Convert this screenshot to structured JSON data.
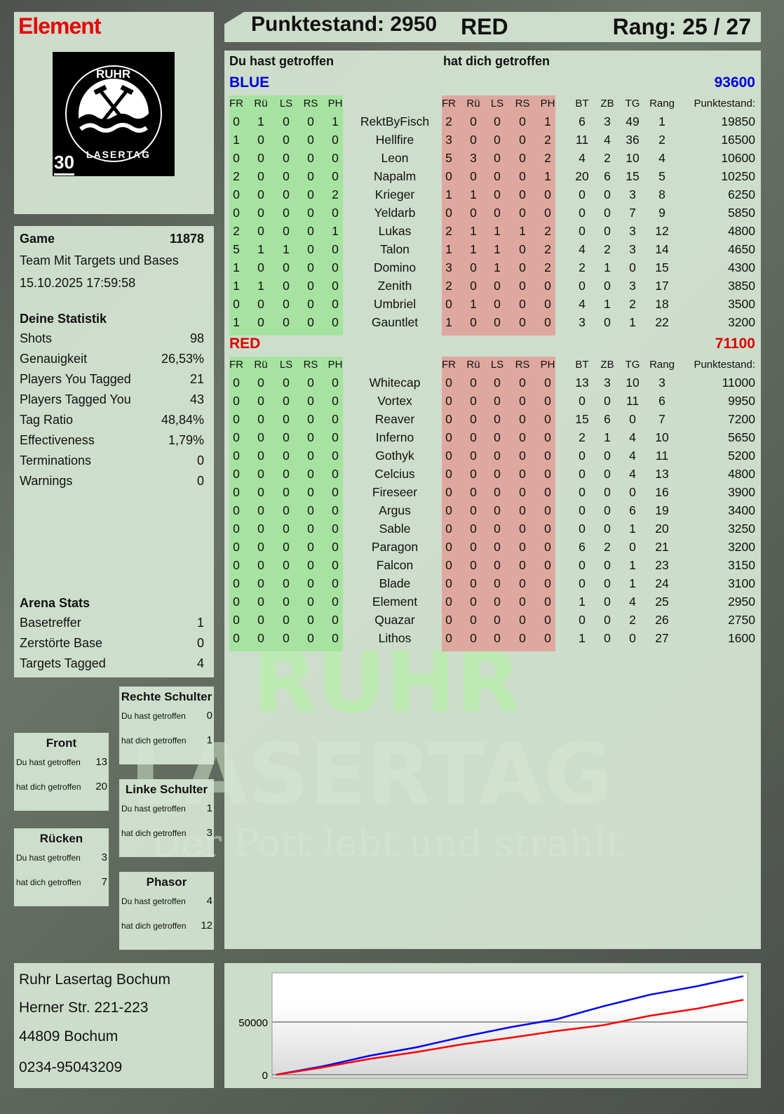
{
  "player": {
    "name": "Element",
    "score_label": "Punktestand: 2950",
    "team": "RED",
    "rank_label": "Rang: 25 / 27"
  },
  "logo": {
    "top": "RUHR",
    "bottom": "LASERTAG",
    "badge": "30"
  },
  "watermark": {
    "line1": "RUHR",
    "line2": "LASERTAG",
    "slogan": "Der Pott lebt und strahlt"
  },
  "game": {
    "label": "Game",
    "id": "11878",
    "mode": "Team Mit Targets und Bases",
    "datetime": "15.10.2025 17:59:58"
  },
  "stats": {
    "title": "Deine Statistik",
    "items": [
      {
        "label": "Shots",
        "value": "98"
      },
      {
        "label": "Genauigkeit",
        "value": "26,53%"
      },
      {
        "label": "Players You Tagged",
        "value": "21"
      },
      {
        "label": "Players Tagged You",
        "value": "43"
      },
      {
        "label": "Tag Ratio",
        "value": "48,84%"
      },
      {
        "label": "Effectiveness",
        "value": "1,79%"
      },
      {
        "label": "Terminations",
        "value": "0"
      },
      {
        "label": "Warnings",
        "value": "0"
      }
    ]
  },
  "arena": {
    "title": "Arena Stats",
    "items": [
      {
        "label": "Basetreffer",
        "value": "1"
      },
      {
        "label": "Zerstörte Base",
        "value": "0"
      },
      {
        "label": "Targets Tagged",
        "value": "4"
      }
    ]
  },
  "zones": [
    {
      "title": "Rechte Schulter",
      "hit_label": "Du hast getroffen",
      "hit": "0",
      "got_label": "hat dich getroffen",
      "got": "1"
    },
    {
      "title": "Front",
      "hit_label": "Du hast getroffen",
      "hit": "13",
      "got_label": "hat dich getroffen",
      "got": "20"
    },
    {
      "title": "Linke Schulter",
      "hit_label": "Du hast getroffen",
      "hit": "1",
      "got_label": "hat dich getroffen",
      "got": "3"
    },
    {
      "title": "Rücken",
      "hit_label": "Du hast getroffen",
      "hit": "3",
      "got_label": "hat dich getroffen",
      "got": "7"
    },
    {
      "title": "Phasor",
      "hit_label": "Du hast getroffen",
      "hit": "4",
      "got_label": "hat dich getroffen",
      "got": "12"
    }
  ],
  "address": [
    "Ruhr Lasertag Bochum",
    "Herner Str. 221-223",
    "44809 Bochum",
    "0234-95043209"
  ],
  "table": {
    "you_hit_label": "Du hast getroffen",
    "hit_you_label": "hat dich getroffen",
    "hit_cols": [
      "FR",
      "Rü",
      "LS",
      "RS",
      "PH"
    ],
    "stat_cols": [
      "BT",
      "ZB",
      "TG",
      "Rang"
    ],
    "score_col": "Punktestand:",
    "colors": {
      "you_hit_bg": "#a6e3a0",
      "hit_you_bg": "#dfa89e"
    },
    "teams": [
      {
        "name": "BLUE",
        "score": "93600",
        "color": "#0000dd",
        "rows": [
          {
            "name": "RektByFisch",
            "hit": [
              0,
              1,
              0,
              0,
              1
            ],
            "got": [
              2,
              0,
              0,
              0,
              1
            ],
            "st": [
              6,
              3,
              49,
              1
            ],
            "pts": "19850"
          },
          {
            "name": "Hellfire",
            "hit": [
              1,
              0,
              0,
              0,
              0
            ],
            "got": [
              3,
              0,
              0,
              0,
              2
            ],
            "st": [
              11,
              4,
              36,
              2
            ],
            "pts": "16500"
          },
          {
            "name": "Leon",
            "hit": [
              0,
              0,
              0,
              0,
              0
            ],
            "got": [
              5,
              3,
              0,
              0,
              2
            ],
            "st": [
              4,
              2,
              10,
              4
            ],
            "pts": "10600"
          },
          {
            "name": "Napalm",
            "hit": [
              2,
              0,
              0,
              0,
              0
            ],
            "got": [
              0,
              0,
              0,
              0,
              1
            ],
            "st": [
              20,
              6,
              15,
              5
            ],
            "pts": "10250"
          },
          {
            "name": "Krieger",
            "hit": [
              0,
              0,
              0,
              0,
              2
            ],
            "got": [
              1,
              1,
              0,
              0,
              0
            ],
            "st": [
              0,
              0,
              3,
              8
            ],
            "pts": "6250"
          },
          {
            "name": "Yeldarb",
            "hit": [
              0,
              0,
              0,
              0,
              0
            ],
            "got": [
              0,
              0,
              0,
              0,
              0
            ],
            "st": [
              0,
              0,
              7,
              9
            ],
            "pts": "5850"
          },
          {
            "name": "Lukas",
            "hit": [
              2,
              0,
              0,
              0,
              1
            ],
            "got": [
              2,
              1,
              1,
              1,
              2
            ],
            "st": [
              0,
              0,
              3,
              12
            ],
            "pts": "4800"
          },
          {
            "name": "Talon",
            "hit": [
              5,
              1,
              1,
              0,
              0
            ],
            "got": [
              1,
              1,
              1,
              0,
              2
            ],
            "st": [
              4,
              2,
              3,
              14
            ],
            "pts": "4650"
          },
          {
            "name": "Domino",
            "hit": [
              1,
              0,
              0,
              0,
              0
            ],
            "got": [
              3,
              0,
              1,
              0,
              2
            ],
            "st": [
              2,
              1,
              0,
              15
            ],
            "pts": "4300"
          },
          {
            "name": "Zenith",
            "hit": [
              1,
              1,
              0,
              0,
              0
            ],
            "got": [
              2,
              0,
              0,
              0,
              0
            ],
            "st": [
              0,
              0,
              3,
              17
            ],
            "pts": "3850"
          },
          {
            "name": "Umbriel",
            "hit": [
              0,
              0,
              0,
              0,
              0
            ],
            "got": [
              0,
              1,
              0,
              0,
              0
            ],
            "st": [
              4,
              1,
              2,
              18
            ],
            "pts": "3500"
          },
          {
            "name": "Gauntlet",
            "hit": [
              1,
              0,
              0,
              0,
              0
            ],
            "got": [
              1,
              0,
              0,
              0,
              0
            ],
            "st": [
              3,
              0,
              1,
              22
            ],
            "pts": "3200"
          }
        ]
      },
      {
        "name": "RED",
        "score": "71100",
        "color": "#dd0000",
        "rows": [
          {
            "name": "Whitecap",
            "hit": [
              0,
              0,
              0,
              0,
              0
            ],
            "got": [
              0,
              0,
              0,
              0,
              0
            ],
            "st": [
              13,
              3,
              10,
              3
            ],
            "pts": "11000"
          },
          {
            "name": "Vortex",
            "hit": [
              0,
              0,
              0,
              0,
              0
            ],
            "got": [
              0,
              0,
              0,
              0,
              0
            ],
            "st": [
              0,
              0,
              11,
              6
            ],
            "pts": "9950"
          },
          {
            "name": "Reaver",
            "hit": [
              0,
              0,
              0,
              0,
              0
            ],
            "got": [
              0,
              0,
              0,
              0,
              0
            ],
            "st": [
              15,
              6,
              0,
              7
            ],
            "pts": "7200"
          },
          {
            "name": "Inferno",
            "hit": [
              0,
              0,
              0,
              0,
              0
            ],
            "got": [
              0,
              0,
              0,
              0,
              0
            ],
            "st": [
              2,
              1,
              4,
              10
            ],
            "pts": "5650"
          },
          {
            "name": "Gothyk",
            "hit": [
              0,
              0,
              0,
              0,
              0
            ],
            "got": [
              0,
              0,
              0,
              0,
              0
            ],
            "st": [
              0,
              0,
              4,
              11
            ],
            "pts": "5200"
          },
          {
            "name": "Celcius",
            "hit": [
              0,
              0,
              0,
              0,
              0
            ],
            "got": [
              0,
              0,
              0,
              0,
              0
            ],
            "st": [
              0,
              0,
              4,
              13
            ],
            "pts": "4800"
          },
          {
            "name": "Fireseer",
            "hit": [
              0,
              0,
              0,
              0,
              0
            ],
            "got": [
              0,
              0,
              0,
              0,
              0
            ],
            "st": [
              0,
              0,
              0,
              16
            ],
            "pts": "3900"
          },
          {
            "name": "Argus",
            "hit": [
              0,
              0,
              0,
              0,
              0
            ],
            "got": [
              0,
              0,
              0,
              0,
              0
            ],
            "st": [
              0,
              0,
              6,
              19
            ],
            "pts": "3400"
          },
          {
            "name": "Sable",
            "hit": [
              0,
              0,
              0,
              0,
              0
            ],
            "got": [
              0,
              0,
              0,
              0,
              0
            ],
            "st": [
              0,
              0,
              1,
              20
            ],
            "pts": "3250"
          },
          {
            "name": "Paragon",
            "hit": [
              0,
              0,
              0,
              0,
              0
            ],
            "got": [
              0,
              0,
              0,
              0,
              0
            ],
            "st": [
              6,
              2,
              0,
              21
            ],
            "pts": "3200"
          },
          {
            "name": "Falcon",
            "hit": [
              0,
              0,
              0,
              0,
              0
            ],
            "got": [
              0,
              0,
              0,
              0,
              0
            ],
            "st": [
              0,
              0,
              1,
              23
            ],
            "pts": "3150"
          },
          {
            "name": "Blade",
            "hit": [
              0,
              0,
              0,
              0,
              0
            ],
            "got": [
              0,
              0,
              0,
              0,
              0
            ],
            "st": [
              0,
              0,
              1,
              24
            ],
            "pts": "3100"
          },
          {
            "name": "Element",
            "hit": [
              0,
              0,
              0,
              0,
              0
            ],
            "got": [
              0,
              0,
              0,
              0,
              0
            ],
            "st": [
              1,
              0,
              4,
              25
            ],
            "pts": "2950"
          },
          {
            "name": "Quazar",
            "hit": [
              0,
              0,
              0,
              0,
              0
            ],
            "got": [
              0,
              0,
              0,
              0,
              0
            ],
            "st": [
              0,
              0,
              2,
              26
            ],
            "pts": "2750"
          },
          {
            "name": "Lithos",
            "hit": [
              0,
              0,
              0,
              0,
              0
            ],
            "got": [
              0,
              0,
              0,
              0,
              0
            ],
            "st": [
              1,
              0,
              0,
              27
            ],
            "pts": "1600"
          }
        ]
      }
    ]
  },
  "chart_data": {
    "type": "line",
    "title": "",
    "xlabel": "",
    "ylabel": "",
    "ylim": [
      0,
      96700
    ],
    "yticks": [
      0,
      50000
    ],
    "grid": true,
    "legend": "none",
    "series": [
      {
        "color": "#0000ff",
        "values": [
          0,
          8000,
          18000,
          26000,
          36000,
          45000,
          52700,
          65000,
          76000,
          84000,
          93600
        ]
      },
      {
        "color": "#ff0000",
        "values": [
          0,
          7000,
          15000,
          21500,
          29000,
          35000,
          41500,
          47000,
          56000,
          62700,
          71100
        ]
      }
    ]
  }
}
